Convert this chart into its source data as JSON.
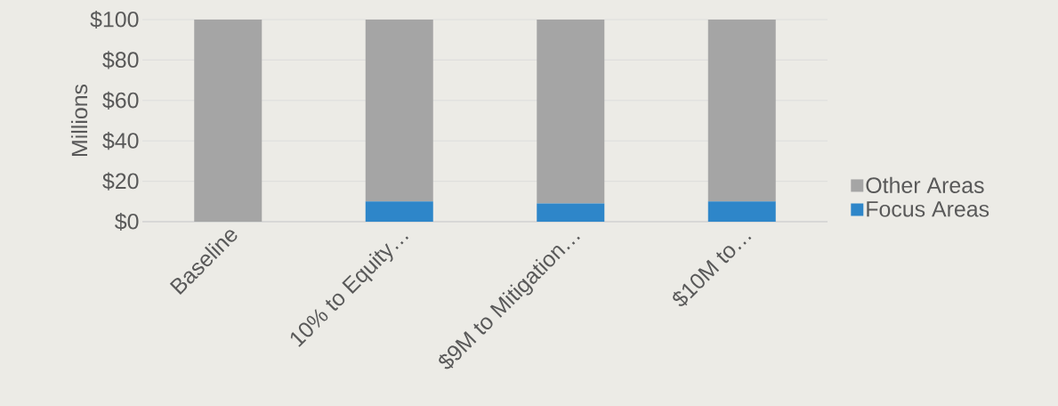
{
  "chart_data": {
    "type": "bar",
    "stacked": true,
    "ylabel": "Millions",
    "categories": [
      "Baseline",
      "10% to Equity…",
      "$9M to Mitigation…",
      "$10M to…"
    ],
    "series": [
      {
        "name": "Focus Areas",
        "color": "#2e86c9",
        "values": [
          0,
          10,
          9,
          10
        ]
      },
      {
        "name": "Other Areas",
        "color": "#a5a5a5",
        "values": [
          100,
          90,
          91,
          90
        ]
      }
    ],
    "ylim": [
      0,
      100
    ],
    "yticks": [
      {
        "value": 0,
        "label": "$0"
      },
      {
        "value": 20,
        "label": "$20"
      },
      {
        "value": 40,
        "label": "$40"
      },
      {
        "value": 60,
        "label": "$60"
      },
      {
        "value": 80,
        "label": "$80"
      },
      {
        "value": 100,
        "label": "$100"
      }
    ],
    "grid": "y",
    "legend": "right"
  }
}
